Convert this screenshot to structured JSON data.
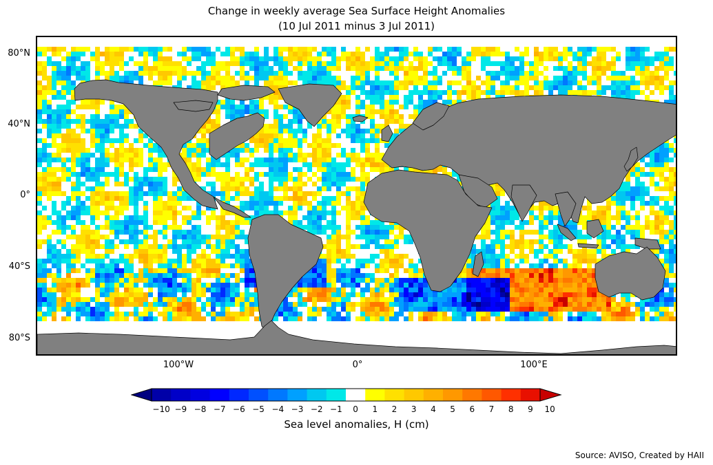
{
  "title_line1": "Change in weekly average Sea Surface Height Anomalies",
  "title_line2": "(10 Jul 2011 minus 3 Jul 2011)",
  "lat_labels": [
    "80°N",
    "40°N",
    "0°",
    "40°S",
    "80°S"
  ],
  "lon_labels": [
    "100°W",
    "0°",
    "100°E"
  ],
  "colorbar": {
    "label": "Sea level anomalies, H (cm)",
    "ticks": [
      "−10",
      "−9",
      "−8",
      "−7",
      "−6",
      "−5",
      "−4",
      "−3",
      "−2",
      "−1",
      "0",
      "1",
      "2",
      "3",
      "4",
      "5",
      "6",
      "7",
      "8",
      "9",
      "10"
    ],
    "colors": [
      "#000080",
      "#0000a8",
      "#0000c8",
      "#0000e0",
      "#0000ff",
      "#0028ff",
      "#0050ff",
      "#0078ff",
      "#00a0ff",
      "#00c8f0",
      "#00e8e8",
      "#ffffff",
      "#ffff00",
      "#ffe000",
      "#ffc800",
      "#ffb000",
      "#ff9800",
      "#ff7800",
      "#ff5800",
      "#ff3000",
      "#e81000",
      "#c80000"
    ],
    "extend": "both"
  },
  "colors": {
    "land": "#808080",
    "no_data": "#ffffff",
    "coast": "#000000"
  },
  "source": "Source: AVISO, Created by HAII"
}
